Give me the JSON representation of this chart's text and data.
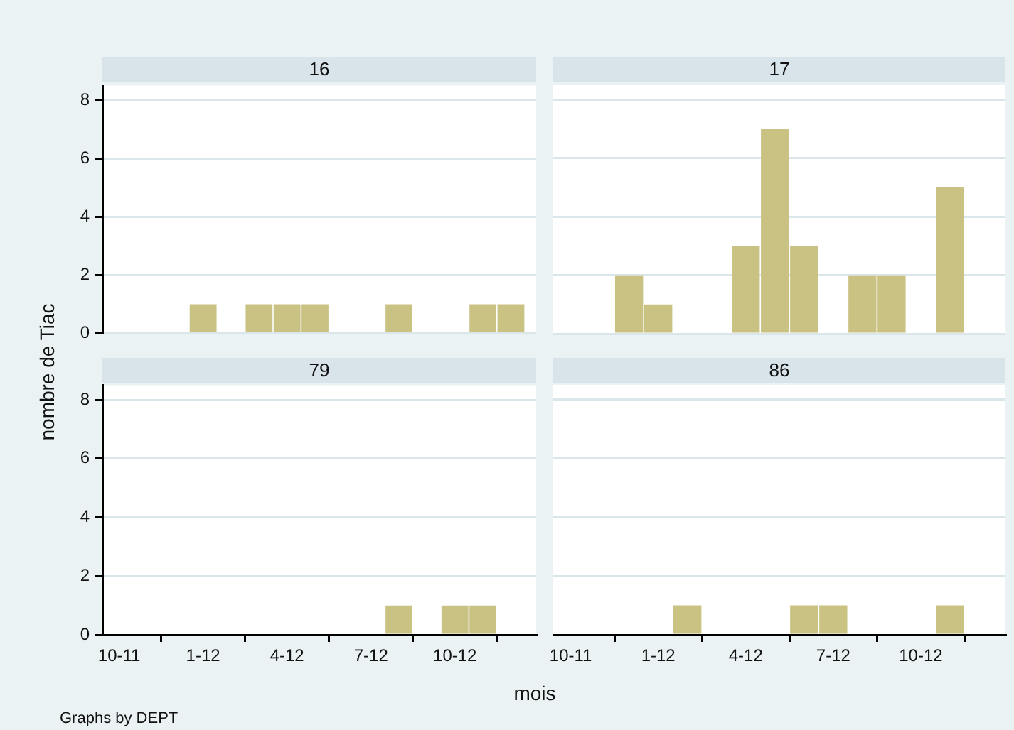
{
  "chart_data": [
    {
      "type": "bar",
      "title": "16",
      "ylabel": "nombre de Tiac",
      "x": [
        "2012-01",
        "2012-03",
        "2012-04",
        "2012-05",
        "2012-08",
        "2012-11",
        "2012-12"
      ],
      "values": [
        1,
        1,
        1,
        1,
        1,
        1,
        1
      ],
      "color": "#c9c283",
      "xlim": [
        "2011-09-13",
        "2012-12-29"
      ],
      "ylim": [
        0,
        8.5
      ],
      "yticks": [
        0,
        2,
        4,
        6,
        8
      ],
      "grid": "y",
      "tick_labels": "y"
    },
    {
      "type": "bar",
      "title": "17",
      "x": [
        "2011-12",
        "2012-01",
        "2012-04",
        "2012-05",
        "2012-06",
        "2012-08",
        "2012-09",
        "2012-11"
      ],
      "values": [
        2,
        1,
        3,
        7,
        3,
        2,
        2,
        5
      ],
      "color": "#c9c283",
      "xlim": [
        "2011-09-13",
        "2012-12-29"
      ],
      "ylim": [
        0,
        8.5
      ],
      "yticks": [
        0,
        2,
        4,
        6,
        8
      ],
      "grid": "y",
      "tick_labels": false
    },
    {
      "type": "bar",
      "title": "79",
      "xlabel": "mois",
      "annotations": [
        "Graphs by DEPT"
      ],
      "x": [
        "2012-08",
        "2012-10",
        "2012-11"
      ],
      "values": [
        1,
        1,
        1
      ],
      "color": "#c9c283",
      "xlim": [
        "2011-09-13",
        "2012-12-29"
      ],
      "xticks": [
        {
          "value": "2011-10",
          "label": "10-11"
        },
        {
          "value": "2012-01",
          "label": "1-12"
        },
        {
          "value": "2012-04",
          "label": "4-12"
        },
        {
          "value": "2012-07",
          "label": "7-12"
        },
        {
          "value": "2012-10",
          "label": "10-12"
        }
      ],
      "ylim": [
        0,
        8.5
      ],
      "yticks": [
        0,
        2,
        4,
        6,
        8
      ],
      "grid": "y"
    },
    {
      "type": "bar",
      "title": "86",
      "x": [
        "2012-02",
        "2012-06",
        "2012-07",
        "2012-11"
      ],
      "values": [
        1,
        1,
        1,
        1
      ],
      "color": "#c9c283",
      "xlim": [
        "2011-09-13",
        "2012-12-29"
      ],
      "xticks": [
        {
          "value": "2011-10",
          "label": "10-11"
        },
        {
          "value": "2012-01",
          "label": "1-12"
        },
        {
          "value": "2012-04",
          "label": "4-12"
        },
        {
          "value": "2012-07",
          "label": "7-12"
        },
        {
          "value": "2012-10",
          "label": "10-12"
        }
      ],
      "ylim": [
        0,
        8.5
      ],
      "yticks": [
        0,
        2,
        4,
        6,
        8
      ],
      "grid": "y",
      "tick_labels": "x"
    }
  ]
}
